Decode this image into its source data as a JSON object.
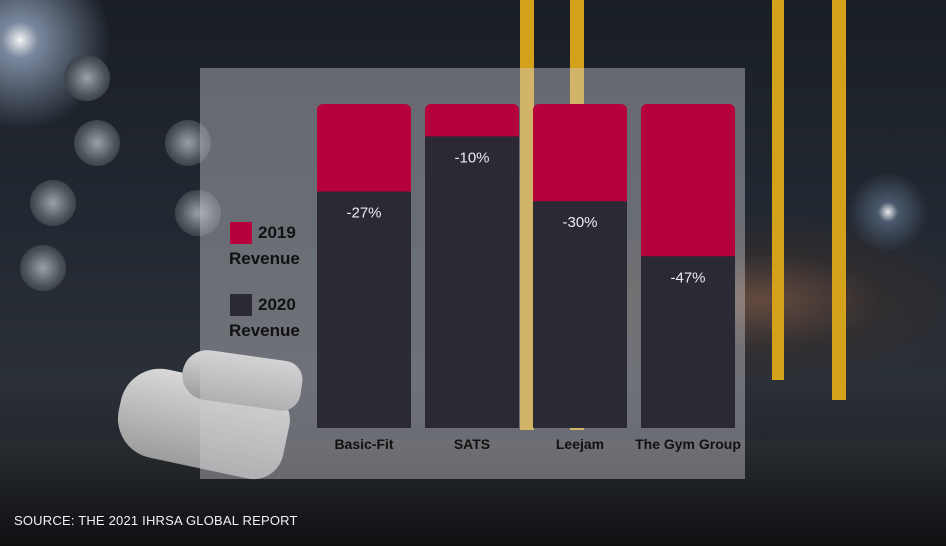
{
  "colors": {
    "rev2019": "#b5003c",
    "rev2020": "#2a2934",
    "accent_rack": "#d4a21a"
  },
  "legend": [
    {
      "label_line1": "2019",
      "label_line2": "Revenue",
      "color": "#b5003c"
    },
    {
      "label_line1": "2020",
      "label_line2": "Revenue",
      "color": "#2a2934"
    }
  ],
  "source": "SOURCE: THE 2021 IHRSA GLOBAL REPORT",
  "chart_data": {
    "type": "bar",
    "categories": [
      "Basic-Fit",
      "SATS",
      "Leejam",
      "The Gym Group"
    ],
    "series": [
      {
        "name": "2019 Revenue",
        "values": [
          100,
          100,
          100,
          100
        ]
      },
      {
        "name": "2020 Revenue",
        "values": [
          73,
          90,
          70,
          53
        ]
      }
    ],
    "data_labels": [
      "-27%",
      "-10%",
      "-30%",
      "-47%"
    ],
    "ylim": [
      0,
      100
    ],
    "grid": false,
    "legend_position": "left"
  }
}
